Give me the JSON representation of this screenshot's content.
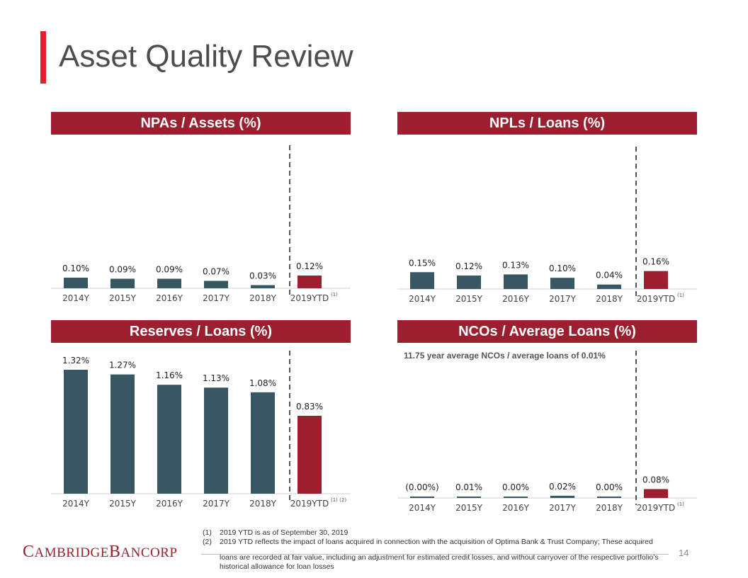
{
  "page": {
    "title": "Asset Quality Review",
    "page_number": "14",
    "logo": {
      "first_initial": "C",
      "first_rest": "AMBRIDGE",
      "second_initial": "B",
      "second_rest": "ANCORP"
    }
  },
  "colors": {
    "historical": "#375763",
    "ytd": "#9b1f2e",
    "header_bg": "#9b1f2e",
    "title_accent": "#e21f2d"
  },
  "chart_data": [
    {
      "type": "bar",
      "title": "NPAs / Assets (%)",
      "categories": [
        "2014Y",
        "2015Y",
        "2016Y",
        "2017Y",
        "2018Y",
        "2019YTD"
      ],
      "values": [
        0.1,
        0.09,
        0.09,
        0.07,
        0.03,
        0.12
      ],
      "labels": [
        "0.10%",
        "0.09%",
        "0.09%",
        "0.07%",
        "0.03%",
        "0.12%"
      ],
      "ytd_footnote": "(1)",
      "ylim": [
        0,
        0.6
      ]
    },
    {
      "type": "bar",
      "title": "NPLs / Loans (%)",
      "categories": [
        "2014Y",
        "2015Y",
        "2016Y",
        "2017Y",
        "2018Y",
        "2019YTD"
      ],
      "values": [
        0.15,
        0.12,
        0.13,
        0.1,
        0.04,
        0.16
      ],
      "labels": [
        "0.15%",
        "0.12%",
        "0.13%",
        "0.10%",
        "0.04%",
        "0.16%"
      ],
      "ytd_footnote": "(1)",
      "ylim": [
        0,
        0.6
      ]
    },
    {
      "type": "bar",
      "title": "Reserves / Loans (%)",
      "categories": [
        "2014Y",
        "2015Y",
        "2016Y",
        "2017Y",
        "2018Y",
        "2019YTD"
      ],
      "values": [
        1.32,
        1.27,
        1.16,
        1.13,
        1.08,
        0.83
      ],
      "labels": [
        "1.32%",
        "1.27%",
        "1.16%",
        "1.13%",
        "1.08%",
        "0.83%"
      ],
      "ytd_footnote": "(1) (2)",
      "ylim": [
        0,
        1.32
      ]
    },
    {
      "type": "bar",
      "title": "NCOs / Average Loans (%)",
      "subtitle": "11.75 year average NCOs / average loans of 0.01%",
      "categories": [
        "2014Y",
        "2015Y",
        "2016Y",
        "2017Y",
        "2018Y",
        "2019YTD"
      ],
      "values": [
        0.0,
        0.01,
        0.0,
        0.02,
        0.0,
        0.08
      ],
      "labels": [
        "(0.00%)",
        "0.01%",
        "0.00%",
        "0.02%",
        "0.00%",
        "0.08%"
      ],
      "ytd_footnote": "(1)",
      "ylim": [
        0,
        0.6
      ]
    }
  ],
  "footnotes": [
    {
      "num": "(1)",
      "text": "2019 YTD is as of September 30, 2019"
    },
    {
      "num": "(2)",
      "text": "2019 YTD reflects the impact of loans acquired in connection with the acquisition of Optima Bank & Trust Company; These acquired"
    }
  ],
  "footnote_continuation": "loans are recorded at fair value, including an adjustment for estimated credit losses, and without carryover of the respective portfolio's historical allowance for loan losses"
}
